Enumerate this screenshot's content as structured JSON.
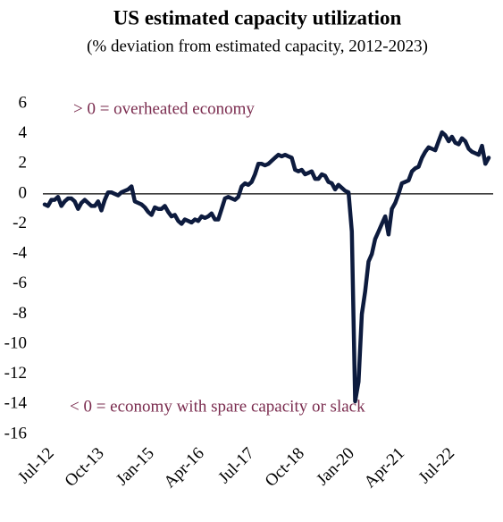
{
  "chart_data": {
    "type": "line",
    "title": "US estimated capacity utilization",
    "subtitle": "(% deviation from estimated capacity, 2012-2023)",
    "annotations": [
      "> 0 = overheated economy",
      "< 0 = economy with spare capacity or slack"
    ],
    "categories": [
      "Jul-12",
      null,
      null,
      null,
      null,
      null,
      null,
      null,
      null,
      null,
      null,
      null,
      null,
      null,
      null,
      "Oct-13",
      null,
      null,
      null,
      null,
      null,
      null,
      null,
      null,
      null,
      null,
      null,
      null,
      null,
      null,
      "Jan-15",
      null,
      null,
      null,
      null,
      null,
      null,
      null,
      null,
      null,
      null,
      null,
      null,
      null,
      null,
      "Apr-16",
      null,
      null,
      null,
      null,
      null,
      null,
      null,
      null,
      null,
      null,
      null,
      null,
      null,
      null,
      "Jul-17",
      null,
      null,
      null,
      null,
      null,
      null,
      null,
      null,
      null,
      null,
      null,
      null,
      null,
      null,
      "Oct-18",
      null,
      null,
      null,
      null,
      null,
      null,
      null,
      null,
      null,
      null,
      null,
      null,
      null,
      null,
      "Jan-20",
      null,
      null,
      null,
      null,
      null,
      null,
      null,
      null,
      null,
      null,
      null,
      null,
      null,
      null,
      "Apr-21",
      null,
      null,
      null,
      null,
      null,
      null,
      null,
      null,
      null,
      null,
      null,
      null,
      null,
      null,
      "Jul-22",
      null,
      null,
      null,
      null,
      null,
      null,
      null,
      null,
      null,
      null,
      null,
      null,
      null
    ],
    "series": [
      {
        "name": "US estimated capacity utilization",
        "color": "#0d1b3e",
        "values": [
          -0.7,
          -0.8,
          -0.4,
          -0.4,
          -0.2,
          -0.8,
          -0.5,
          -0.3,
          -0.3,
          -0.5,
          -1.0,
          -0.6,
          -0.4,
          -0.6,
          -0.8,
          -0.8,
          -0.5,
          -1.1,
          -0.4,
          0.1,
          0.1,
          0.0,
          -0.1,
          0.1,
          0.2,
          0.3,
          0.5,
          -0.5,
          -0.6,
          -0.7,
          -0.9,
          -1.2,
          -1.4,
          -0.9,
          -1.0,
          -1.0,
          -0.8,
          -1.2,
          -1.5,
          -1.4,
          -1.8,
          -2.0,
          -1.7,
          -1.8,
          -1.9,
          -1.7,
          -1.8,
          -1.5,
          -1.6,
          -1.5,
          -1.3,
          -1.7,
          -1.7,
          -1.0,
          -0.3,
          -0.2,
          -0.3,
          -0.4,
          -0.2,
          0.5,
          0.7,
          0.6,
          0.8,
          1.3,
          2.0,
          2.0,
          1.9,
          2.0,
          2.2,
          2.4,
          2.6,
          2.5,
          2.6,
          2.5,
          2.4,
          1.6,
          1.5,
          1.6,
          1.3,
          1.4,
          1.5,
          1.0,
          1.0,
          1.3,
          1.2,
          0.8,
          0.7,
          0.3,
          0.6,
          0.4,
          0.2,
          0.1,
          -2.5,
          -13.8,
          -12.5,
          -8.0,
          -6.5,
          -4.5,
          -4.0,
          -3.0,
          -2.5,
          -2.0,
          -1.5,
          -2.7,
          -1.0,
          -0.6,
          0.0,
          0.7,
          0.8,
          0.9,
          1.5,
          1.7,
          1.8,
          2.4,
          2.8,
          3.1,
          3.0,
          2.9,
          3.5,
          4.1,
          3.9,
          3.5,
          3.8,
          3.4,
          3.3,
          3.7,
          3.5,
          3.0,
          2.8,
          2.7,
          2.6,
          3.2,
          2.0,
          2.4
        ]
      }
    ],
    "ylim": [
      -16,
      6
    ],
    "yticks": [
      6,
      4,
      2,
      0,
      -2,
      -4,
      -6,
      -8,
      -10,
      -12,
      -14,
      -16
    ],
    "zero_line": true
  }
}
